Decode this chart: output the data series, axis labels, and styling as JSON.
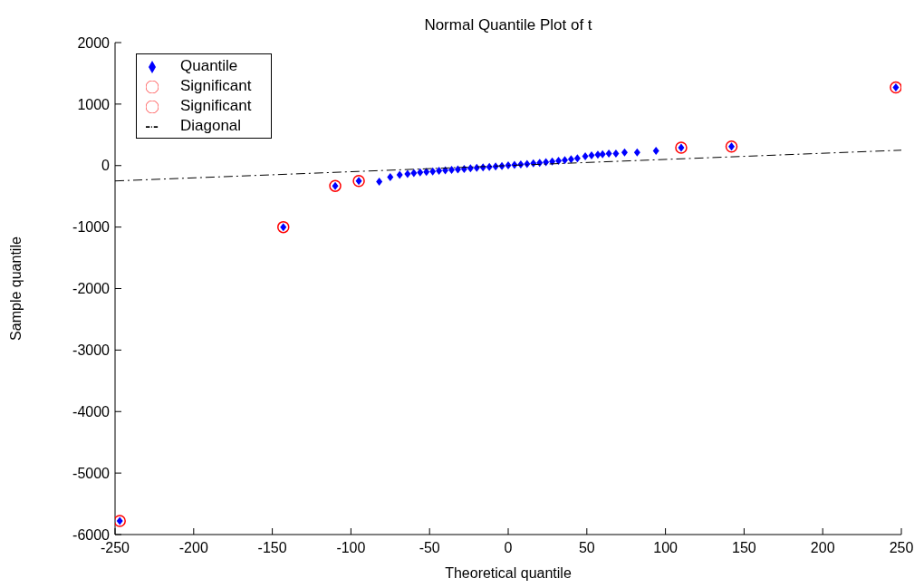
{
  "chart_data": {
    "type": "scatter",
    "title": "Normal Quantile Plot of t",
    "xlabel": "Theoretical quantile",
    "ylabel": "Sample quantile",
    "xlim": [
      -250,
      250
    ],
    "xticks": [
      -250,
      -200,
      -150,
      -100,
      -50,
      0,
      50,
      100,
      150,
      200,
      250
    ],
    "ylim": [
      -6000,
      2000
    ],
    "yticks": [
      -6000,
      -5000,
      -4000,
      -3000,
      -2000,
      -1000,
      0,
      1000,
      2000
    ],
    "grid": false,
    "legend": "top left",
    "series": [
      {
        "name": "Quantile",
        "color": "#0000ff",
        "marker": "diamond",
        "x": [
          -247,
          -143,
          -110,
          -95,
          -82,
          -75,
          -69,
          -64,
          -60,
          -56,
          -52,
          -48,
          -44,
          -40,
          -36,
          -32,
          -28,
          -24,
          -20,
          -16,
          -12,
          -8,
          -4,
          0,
          4,
          8,
          12,
          16,
          20,
          24,
          28,
          32,
          36,
          40,
          44,
          49,
          53,
          57,
          60,
          64,
          68.5,
          74,
          82,
          94,
          110,
          142,
          246.5
        ],
        "values": [
          -5780,
          -1000,
          -330,
          -250,
          -260,
          -187,
          -150,
          -135,
          -122,
          -112,
          -103,
          -94,
          -86,
          -78,
          -70,
          -62,
          -54,
          -46,
          -38,
          -30,
          -22,
          -14,
          -6,
          2,
          10,
          18,
          27,
          36,
          45,
          55,
          65,
          76,
          88,
          102,
          118,
          150,
          165,
          175,
          185,
          195,
          195,
          215,
          215,
          240,
          290,
          310,
          1270
        ]
      },
      {
        "name": "Significant",
        "color": "#ff0000",
        "marker": "circle",
        "x": [
          -247,
          -143,
          -110,
          -95
        ],
        "values": [
          -5780,
          -1000,
          -330,
          -250
        ]
      },
      {
        "name": "Significant",
        "color": "#ff0000",
        "marker": "circle",
        "x": [
          110,
          142,
          246.5
        ],
        "values": [
          290,
          310,
          1270
        ]
      },
      {
        "name": "Diagonal",
        "type": "line",
        "color": "#000000",
        "marker": "none",
        "line_style": "dashed",
        "x": [
          -250,
          250
        ],
        "values": [
          -250,
          250
        ]
      }
    ]
  }
}
